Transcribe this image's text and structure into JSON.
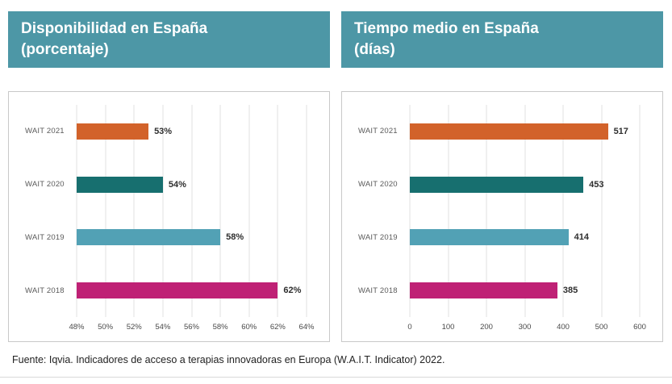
{
  "panels": [
    {
      "title_line1": "Disponibilidad en España",
      "title_line2": "(porcentaje)"
    },
    {
      "title_line1": "Tiempo medio en España",
      "title_line2": "(días)"
    }
  ],
  "footer": "Fuente: Iqvia. Indicadores de acceso a terapias innovadoras en Europa (W.A.I.T. Indicator) 2022.",
  "colors": {
    "header_teal": "#4d97a6",
    "bar_orange": "#d2622a",
    "bar_dark_teal": "#176f6f",
    "bar_light_blue": "#52a1b5",
    "bar_magenta": "#bf2175",
    "gridline": "#e2e2e2",
    "box_border": "#c9c9c9"
  },
  "chart_data": [
    {
      "type": "bar",
      "orientation": "horizontal",
      "title": "Disponibilidad en España (porcentaje)",
      "categories": [
        "WAIT 2021",
        "WAIT 2020",
        "WAIT 2019",
        "WAIT 2018"
      ],
      "values": [
        53,
        54,
        58,
        62
      ],
      "value_labels": [
        "53%",
        "54%",
        "58%",
        "62%"
      ],
      "bar_colors": [
        "#d2622a",
        "#176f6f",
        "#52a1b5",
        "#bf2175"
      ],
      "xlim": [
        48,
        64
      ],
      "xticks": [
        "48%",
        "50%",
        "52%",
        "54%",
        "56%",
        "58%",
        "60%",
        "62%",
        "64%"
      ],
      "xtick_values": [
        48,
        50,
        52,
        54,
        56,
        58,
        60,
        62,
        64
      ],
      "grid": true,
      "legend": false
    },
    {
      "type": "bar",
      "orientation": "horizontal",
      "title": "Tiempo medio en España (días)",
      "categories": [
        "WAIT 2021",
        "WAIT 2020",
        "WAIT 2019",
        "WAIT 2018"
      ],
      "values": [
        517,
        453,
        414,
        385
      ],
      "value_labels": [
        "517",
        "453",
        "414",
        "385"
      ],
      "bar_colors": [
        "#d2622a",
        "#176f6f",
        "#52a1b5",
        "#bf2175"
      ],
      "xlim": [
        0,
        600
      ],
      "xticks": [
        "0",
        "100",
        "200",
        "300",
        "400",
        "500",
        "600"
      ],
      "xtick_values": [
        0,
        100,
        200,
        300,
        400,
        500,
        600
      ],
      "grid": true,
      "legend": false
    }
  ]
}
